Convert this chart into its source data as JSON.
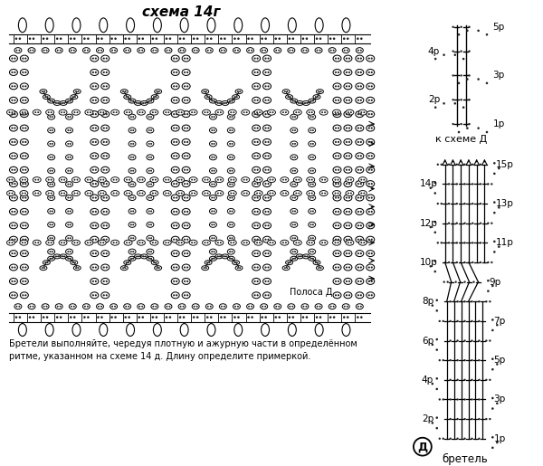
{
  "title": "схема 14г",
  "bg_color": "#ffffff",
  "label_polosa": "Полоса Д",
  "label_k_scheme": "к схеме Д",
  "label_bretel": "бретель",
  "label_d": "Д",
  "bottom_text": "Бретели выполняйте, чередуя плотную и ажурную части в определённом\nритме, указанном на схеме 14 д. Длину определите примеркой.",
  "fig_width": 6.0,
  "fig_height": 5.15
}
